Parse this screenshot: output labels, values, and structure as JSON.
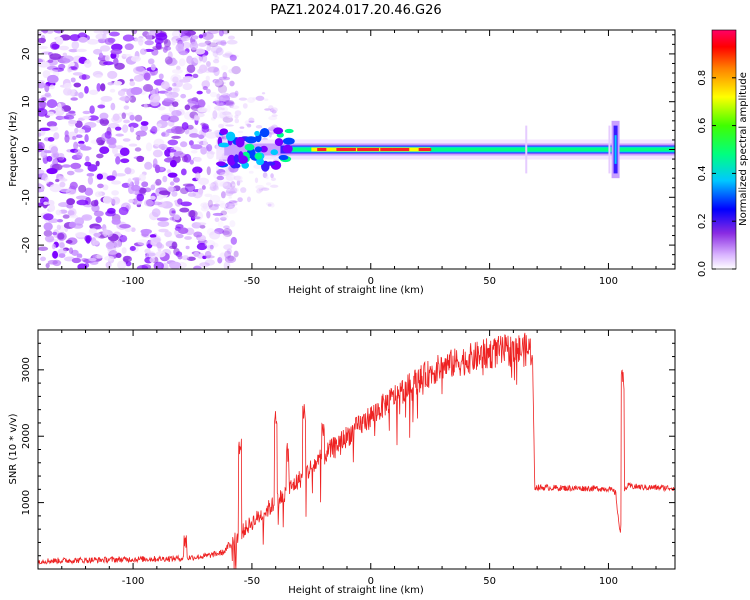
{
  "title": "PAZ1.2024.017.20.46.G26",
  "colors": {
    "snr_line": "#ee2222",
    "axis": "#000000"
  },
  "chart_data": [
    {
      "type": "heatmap",
      "title": "PAZ1.2024.017.20.46.G26",
      "xlabel": "Height of straight line (km)",
      "ylabel": "Frequency (Hz)",
      "xlim": [
        -140,
        128
      ],
      "ylim": [
        -25,
        25
      ],
      "x_ticks": [
        -100,
        -50,
        0,
        50,
        100
      ],
      "y_ticks": [
        -20,
        -10,
        0,
        10,
        20
      ],
      "colorbar": {
        "label": "Normalized spectral amplitude",
        "range": [
          0,
          1
        ],
        "ticks": [
          "0.0",
          "0.2",
          "0.4",
          "0.6",
          "0.8"
        ],
        "colormap": "rainbow"
      },
      "ridge": {
        "frequency_hz": 0,
        "onset_height_km": -65,
        "strong_segment_km": [
          -25,
          25
        ],
        "spike_height_km": 103,
        "noise_region_km": [
          -140,
          -65
        ]
      }
    },
    {
      "type": "line",
      "xlabel": "Height of straight line (km)",
      "ylabel": "SNR (10 * v/v)",
      "xlim": [
        -140,
        128
      ],
      "ylim": [
        0,
        3600
      ],
      "x_ticks": [
        -100,
        -50,
        0,
        50,
        100
      ],
      "y_ticks": [
        1000,
        2000,
        3000
      ],
      "envelope": {
        "x": [
          -140,
          -110,
          -80,
          -70,
          -62,
          -56,
          -50,
          -40,
          -30,
          -20,
          -10,
          0,
          10,
          20,
          30,
          40,
          50,
          60,
          68,
          69,
          80,
          100,
          103,
          105,
          106,
          108,
          115,
          128
        ],
        "y": [
          120,
          140,
          160,
          190,
          250,
          500,
          700,
          1000,
          1350,
          1700,
          2000,
          2300,
          2600,
          2850,
          3050,
          3150,
          3250,
          3300,
          3300,
          1230,
          1220,
          1210,
          1150,
          500,
          1150,
          1250,
          1230,
          1220
        ]
      },
      "spikes": [
        {
          "x": -78,
          "y": 550
        },
        {
          "x": -55,
          "y": 2000
        },
        {
          "x": -40,
          "y": 2400
        },
        {
          "x": -35,
          "y": 1900
        },
        {
          "x": -28,
          "y": 2500
        },
        {
          "x": -20,
          "y": 2300
        },
        {
          "x": 106,
          "y": 3000
        }
      ]
    }
  ]
}
